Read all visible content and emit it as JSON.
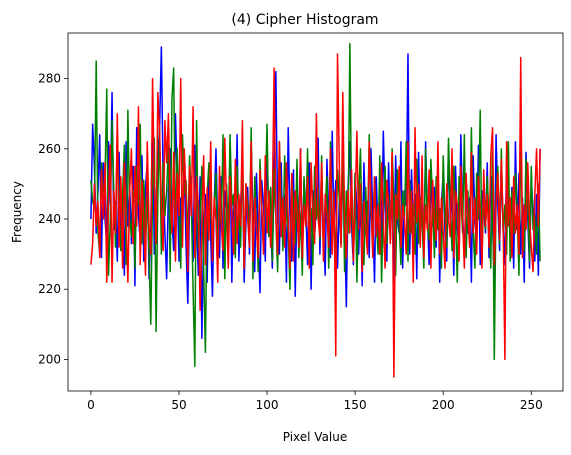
{
  "chart_data": {
    "type": "line",
    "title": "(4) Cipher Histogram",
    "xlabel": "Pixel Value",
    "ylabel": "Frequency",
    "xlim": [
      -13,
      268
    ],
    "ylim": [
      191,
      293
    ],
    "xticks": [
      0,
      50,
      100,
      150,
      200,
      250
    ],
    "yticks": [
      200,
      220,
      240,
      260,
      280
    ],
    "grid": false,
    "series": [
      {
        "color": "#0000ff",
        "values": [
          240,
          267,
          255,
          236,
          248,
          264,
          229,
          256,
          240,
          233,
          262,
          244,
          276,
          237,
          245,
          228,
          259,
          235,
          247,
          224,
          262,
          238,
          250,
          233,
          255,
          221,
          266,
          241,
          234,
          258,
          228,
          249,
          256,
          223,
          238,
          269,
          230,
          244,
          258,
          266,
          289,
          252,
          236,
          223,
          248,
          260,
          240,
          231,
          270,
          251,
          228,
          246,
          238,
          255,
          233,
          216,
          244,
          252,
          228,
          261,
          239,
          224,
          252,
          206,
          238,
          247,
          222,
          255,
          235,
          218,
          244,
          260,
          237,
          229,
          252,
          226,
          248,
          242,
          232,
          259,
          222,
          247,
          238,
          264,
          228,
          244,
          257,
          222,
          239,
          249,
          230,
          262,
          240,
          225,
          253,
          235,
          219,
          251,
          244,
          228,
          263,
          236,
          240,
          226,
          254,
          282,
          240,
          230,
          256,
          233,
          247,
          222,
          266,
          241,
          228,
          254,
          218,
          246,
          237,
          260,
          229,
          251,
          243,
          227,
          256,
          220,
          248,
          235,
          244,
          263,
          230,
          252,
          238,
          224,
          257,
          241,
          229,
          265,
          237,
          251,
          226,
          245,
          233,
          254,
          240,
          215,
          249,
          262,
          238,
          227,
          253,
          243,
          230,
          247,
          221,
          256,
          238,
          245,
          229,
          260,
          241,
          222,
          252,
          236,
          247,
          231,
          265,
          244,
          228,
          256,
          234,
          249,
          222,
          258,
          240,
          236,
          262,
          226,
          248,
          244,
          287,
          230,
          254,
          238,
          247,
          223,
          259,
          236,
          244,
          230,
          262,
          241,
          227,
          254,
          238,
          249,
          232,
          257,
          222,
          244,
          253,
          236,
          228,
          261,
          240,
          247,
          224,
          255,
          237,
          232,
          264,
          242,
          229,
          251,
          236,
          246,
          222,
          258,
          240,
          233,
          261,
          227,
          248,
          243,
          236,
          256,
          229,
          252,
          239,
          222,
          264,
          244,
          231,
          255,
          238,
          227,
          258,
          242,
          236,
          249,
          226,
          262,
          237,
          253,
          230,
          246,
          222,
          259,
          240,
          226,
          251,
          243,
          228,
          247,
          224,
          260
        ]
      },
      {
        "color": "#008000",
        "values": [
          251,
          245,
          243,
          285,
          236,
          230,
          256,
          245,
          251,
          277,
          224,
          240,
          268,
          248,
          232,
          265,
          245,
          231,
          247,
          261,
          227,
          271,
          240,
          235,
          248,
          226,
          255,
          244,
          267,
          233,
          251,
          235,
          246,
          230,
          210,
          248,
          263,
          208,
          246,
          266,
          230,
          256,
          241,
          248,
          261,
          225,
          274,
          283,
          233,
          260,
          243,
          226,
          264,
          247,
          251,
          233,
          258,
          245,
          220,
          198,
          268,
          232,
          241,
          255,
          226,
          202,
          247,
          256,
          244,
          231,
          243,
          253,
          228,
          245,
          238,
          264,
          223,
          250,
          235,
          264,
          244,
          247,
          229,
          255,
          240,
          232,
          261,
          226,
          250,
          244,
          234,
          266,
          223,
          252,
          239,
          225,
          257,
          243,
          231,
          248,
          267,
          235,
          249,
          228,
          254,
          240,
          225,
          262,
          245,
          231,
          258,
          241,
          236,
          220,
          251,
          246,
          233,
          257,
          229,
          242,
          224,
          252,
          238,
          260,
          231,
          243,
          227,
          255,
          240,
          249,
          234,
          258,
          230,
          244,
          252,
          226,
          262,
          236,
          241,
          228,
          254,
          246,
          233,
          260,
          225,
          248,
          236,
          290,
          242,
          230,
          253,
          222,
          245,
          260,
          237,
          227,
          249,
          234,
          264,
          243,
          232,
          252,
          240,
          230,
          258,
          222,
          242,
          255,
          233,
          247,
          235,
          260,
          245,
          224,
          254,
          238,
          227,
          248,
          240,
          262,
          228,
          251,
          236,
          244,
          230,
          257,
          233,
          246,
          240,
          226,
          260,
          238,
          234,
          257,
          245,
          229,
          252,
          237,
          243,
          226,
          258,
          240,
          232,
          263,
          244,
          231,
          255,
          241,
          222,
          252,
          247,
          236,
          264,
          229,
          248,
          233,
          266,
          237,
          226,
          253,
          240,
          271,
          228,
          248,
          237,
          252,
          240,
          226,
          259,
          200,
          247,
          255,
          233,
          260,
          236,
          244,
          230,
          262,
          228,
          248,
          236,
          253,
          242,
          224,
          262,
          240,
          231,
          257,
          246,
          228,
          255,
          237,
          241,
          230,
          250,
          228
        ]
      },
      {
        "color": "#ff0000",
        "values": [
          227,
          233,
          250,
          238,
          245,
          229,
          254,
          240,
          256,
          222,
          246,
          261,
          222,
          248,
          236,
          270,
          232,
          252,
          226,
          256,
          240,
          222,
          248,
          260,
          233,
          255,
          238,
          272,
          227,
          251,
          240,
          224,
          262,
          238,
          230,
          280,
          250,
          233,
          276,
          265,
          244,
          231,
          268,
          256,
          270,
          246,
          236,
          259,
          228,
          253,
          241,
          280,
          232,
          260,
          247,
          225,
          255,
          241,
          272,
          229,
          252,
          244,
          214,
          237,
          258,
          227,
          249,
          234,
          262,
          228,
          246,
          240,
          222,
          255,
          238,
          231,
          263,
          244,
          226,
          252,
          241,
          230,
          257,
          233,
          247,
          238,
          268,
          226,
          250,
          240,
          232,
          262,
          228,
          246,
          237,
          229,
          254,
          243,
          230,
          258,
          236,
          248,
          232,
          244,
          283,
          240,
          230,
          262,
          235,
          246,
          232,
          256,
          240,
          226,
          253,
          228,
          248,
          242,
          232,
          260,
          229,
          244,
          238,
          252,
          226,
          256,
          242,
          233,
          270,
          240,
          235,
          256,
          228,
          247,
          241,
          232,
          260,
          230,
          248,
          201,
          287,
          256,
          232,
          276,
          240,
          229,
          248,
          236,
          254,
          228,
          244,
          265,
          237,
          250,
          225,
          245,
          238,
          230,
          262,
          246,
          229,
          252,
          235,
          244,
          230,
          256,
          240,
          226,
          251,
          244,
          233,
          259,
          195,
          247,
          240,
          255,
          232,
          244,
          240,
          230,
          262,
          236,
          248,
          222,
          266,
          239,
          250,
          232,
          258,
          229,
          244,
          237,
          254,
          226,
          251,
          240,
          234,
          262,
          230,
          246,
          236,
          226,
          250,
          240,
          235,
          260,
          229,
          248,
          244,
          228,
          255,
          240,
          226,
          253,
          241,
          232,
          259,
          236,
          246,
          230,
          252,
          242,
          226,
          254,
          238,
          247,
          232,
          258,
          266,
          227,
          244,
          253,
          234,
          257,
          240,
          200,
          262,
          238,
          246,
          229,
          252,
          236,
          244,
          230,
          286,
          229,
          244,
          237,
          256,
          240,
          232,
          225,
          247,
          260,
          238,
          260
        ]
      }
    ]
  }
}
